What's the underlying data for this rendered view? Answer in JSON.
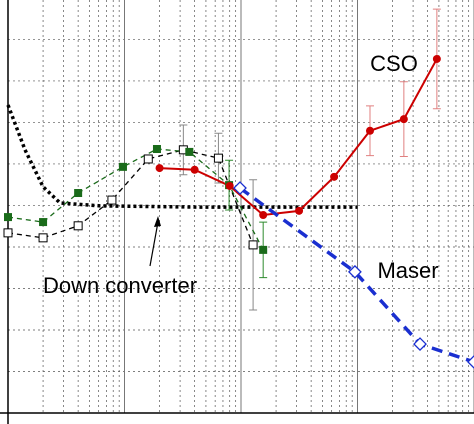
{
  "chart_data": {
    "type": "line",
    "xscale": "log",
    "xlim": [
      1,
      10000
    ],
    "ylim": [
      0,
      9.95
    ],
    "xticks": [
      1,
      10,
      100,
      1000,
      10000
    ],
    "xminor_ticks": [
      2,
      3,
      4,
      5,
      6,
      7,
      8,
      9,
      20,
      30,
      40,
      50,
      60,
      70,
      80,
      90,
      200,
      300,
      400,
      500,
      600,
      700,
      800,
      900,
      2000,
      3000,
      4000,
      5000,
      6000,
      7000,
      8000,
      9000
    ],
    "yticks": [
      0,
      1,
      2,
      3,
      4,
      5,
      6,
      7,
      8,
      9
    ],
    "grid": true,
    "annotations": [
      "CSO",
      "Maser",
      "Down converter"
    ],
    "series": [
      {
        "name": "Down converter",
        "color": "#000000",
        "style": "dotted",
        "marker": "none",
        "x": [
          1,
          1.4,
          2,
          2.8,
          6.2,
          44,
          1000
        ],
        "values": [
          7.42,
          6.34,
          5.45,
          5.06,
          4.99,
          4.96,
          4.96
        ]
      },
      {
        "color": "#000000",
        "style": "dashed-thin",
        "marker": "open-square",
        "x": [
          1,
          2,
          4,
          7.8,
          16,
          32,
          64,
          127
        ],
        "values": [
          4.34,
          4.22,
          4.51,
          5.13,
          6.12,
          6.34,
          6.14,
          4.05
        ],
        "errors": [
          null,
          null,
          null,
          null,
          null,
          0.6,
          0.6,
          1.57
        ],
        "error_color": "#888888"
      },
      {
        "color": "#1a6b1a",
        "style": "dashed-thin",
        "marker": "filled-square",
        "x": [
          1,
          2,
          4,
          9.7,
          19,
          36,
          79,
          155
        ],
        "values": [
          4.72,
          4.6,
          5.3,
          5.93,
          6.36,
          6.29,
          5.49,
          3.93
        ],
        "errors": [
          null,
          null,
          null,
          null,
          null,
          null,
          0.6,
          0.67
        ],
        "error_color": "#2e8b2e"
      },
      {
        "name": "CSO",
        "color": "#cc0000",
        "style": "solid",
        "marker": "filled-circle",
        "x": [
          20,
          40,
          80,
          155,
          315,
          630,
          1280,
          2500,
          4800
        ],
        "values": [
          5.9,
          5.86,
          5.47,
          4.77,
          4.87,
          5.69,
          6.8,
          7.08,
          8.53
        ],
        "errors": [
          null,
          null,
          null,
          null,
          null,
          null,
          0.6,
          0.9,
          1.2
        ],
        "error_color": "#e08080"
      },
      {
        "name": "Maser",
        "color": "#1a2fd0",
        "style": "dashed-thick",
        "marker": "open-diamond",
        "x": [
          98,
          950,
          3440,
          10000
        ],
        "values": [
          5.42,
          3.4,
          1.66,
          1.23
        ]
      }
    ]
  }
}
